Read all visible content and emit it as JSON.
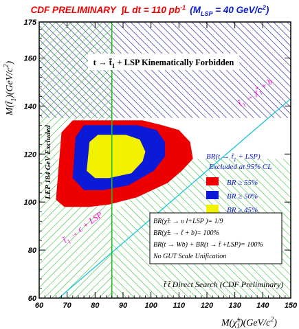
{
  "chart_data": {
    "type": "area",
    "title": {
      "main": "CDF PRELIMINARY",
      "lumi": "∫L dt = 110 pb",
      "lumi_exp": "-1",
      "mass": "(M",
      "mass_sub": "LSP",
      "mass_rest": " = 40 GeV/c",
      "mass_exp": "2",
      "mass_close": ")"
    },
    "xlabel": {
      "text": "M(χ̃",
      "sup": "±",
      "sub": "1",
      "rest": ")(GeV/c",
      "exp": "2",
      "close": ")"
    },
    "ylabel": {
      "text": "M(t̃",
      "sub": "1",
      "rest": ")(GeV/c",
      "exp": "2",
      "close": ")"
    },
    "xlim": [
      60,
      150
    ],
    "ylim": [
      60,
      175
    ],
    "x_ticks": [
      "60",
      "70",
      "80",
      "90",
      "100",
      "110",
      "120",
      "130",
      "140",
      "150"
    ],
    "y_ticks": [
      "60",
      "80",
      "100",
      "120",
      "140",
      "160",
      "175"
    ],
    "regions": {
      "forbidden": {
        "label": "t → t̃",
        "label_sub": "1",
        "label_rest": " + LSP  Kinematically Forbidden",
        "color": "#1f1f9e",
        "y_min": 135
      },
      "lep": {
        "label": "LEP 184 GeV Excluded",
        "color": "#22bb22",
        "x_max": 86
      },
      "direct": {
        "label": "t̃ t̃ Direct Search (CDF Preliminary)",
        "color": "#22bb22"
      }
    },
    "kinematic_lines": [
      {
        "label": "t̃",
        "label_sub": "1",
        "label_rest": " → c + LSP",
        "color": "#ff00cc"
      },
      {
        "label": "t̃",
        "label_sub": "1",
        "label_rest": " → χ̃",
        "label_sup2": "+",
        "label_sub2": "1",
        "label_tail": " + b",
        "color": "#ff00cc"
      }
    ],
    "series": [
      {
        "name": "BR ≥ 55%",
        "color": "#ee0000",
        "points": [
          [
            66,
            101
          ],
          [
            68,
            129
          ],
          [
            72,
            134
          ],
          [
            97,
            134
          ],
          [
            104,
            132
          ],
          [
            110,
            130
          ],
          [
            114,
            125
          ],
          [
            115,
            118
          ],
          [
            111,
            113
          ],
          [
            106,
            108
          ],
          [
            95,
            102
          ],
          [
            85,
            99
          ],
          [
            78,
            98
          ],
          [
            69,
            98
          ]
        ]
      },
      {
        "name": "BR ≥ 50%",
        "color": "#0a1ad6",
        "points": [
          [
            72,
            110
          ],
          [
            73,
            127
          ],
          [
            76,
            132
          ],
          [
            95,
            132
          ],
          [
            102,
            130
          ],
          [
            105,
            125
          ],
          [
            105,
            119
          ],
          [
            101,
            113
          ],
          [
            92,
            107
          ],
          [
            83,
            105
          ],
          [
            76,
            105
          ]
        ]
      },
      {
        "name": "BR ≥ 45%",
        "color": "#f2f200",
        "points": [
          [
            77,
            113
          ],
          [
            78,
            125
          ],
          [
            81,
            128
          ],
          [
            91,
            128
          ],
          [
            96,
            126
          ],
          [
            98,
            121
          ],
          [
            97,
            117
          ],
          [
            93,
            112
          ],
          [
            85,
            110
          ],
          [
            80,
            110
          ]
        ]
      }
    ],
    "legend": {
      "title": "BR(t → t̃",
      "title_sub": "1",
      "title_rest": " + LSP)",
      "subtitle": "Excluded at 95% CL",
      "position": "right"
    },
    "assumptions": [
      "BR(χ̃± → υ l+LSP )= 1/9",
      "BR(χ̃± → t̃ + b)= 100%",
      "BR(t → Wb) + BR(t → t̃ +LSP)= 100%",
      "No GUT Scale Unification"
    ]
  }
}
